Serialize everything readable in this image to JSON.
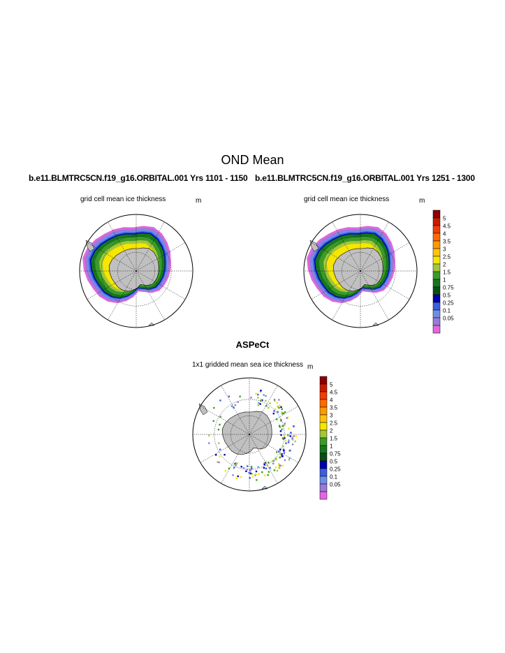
{
  "figure": {
    "title": "OND Mean",
    "run_left": "b.e11.BLMTRC5CN.f19_g16.ORBITAL.001  Yrs 1101 - 1150",
    "run_right": "b.e11.BLMTRC5CN.f19_g16.ORBITAL.001  Yrs 1251 - 1300",
    "obs_title": "ASPeCt"
  },
  "panels": [
    {
      "id": "model-left",
      "title": "grid cell mean ice thickness",
      "units": "m"
    },
    {
      "id": "model-right",
      "title": "grid cell mean ice thickness",
      "units": "m"
    },
    {
      "id": "obs",
      "title": "1x1 gridded mean sea ice thickness",
      "units": "m"
    }
  ],
  "colorbar": {
    "levels": [
      "5",
      "4.5",
      "4",
      "3.5",
      "3",
      "2.5",
      "2",
      "1.5",
      "1",
      "0.75",
      "0.5",
      "0.25",
      "0.1",
      "0.05"
    ],
    "colors": [
      "#8b0000",
      "#cc1a00",
      "#f23c00",
      "#ff6a00",
      "#ff9900",
      "#ffc20e",
      "#f7e600",
      "#a4c639",
      "#3c9a28",
      "#16761c",
      "#0a4f16",
      "#0000b0",
      "#3b5de0",
      "#6b8fe8",
      "#9a79d8",
      "#e266e0"
    ]
  },
  "colors": {
    "land": "#c0c0c0",
    "ice_outer_magenta": "#e266e0",
    "ice_purple": "#9a79d8",
    "ice_lightblue": "#6b8fe8",
    "ice_blue": "#3b5de0",
    "ice_darkblue": "#0000b0",
    "ice_darkgreen": "#16761c",
    "ice_green": "#3c9a28",
    "ice_yellowgreen": "#a4c639",
    "ice_yellow": "#f7e600"
  }
}
